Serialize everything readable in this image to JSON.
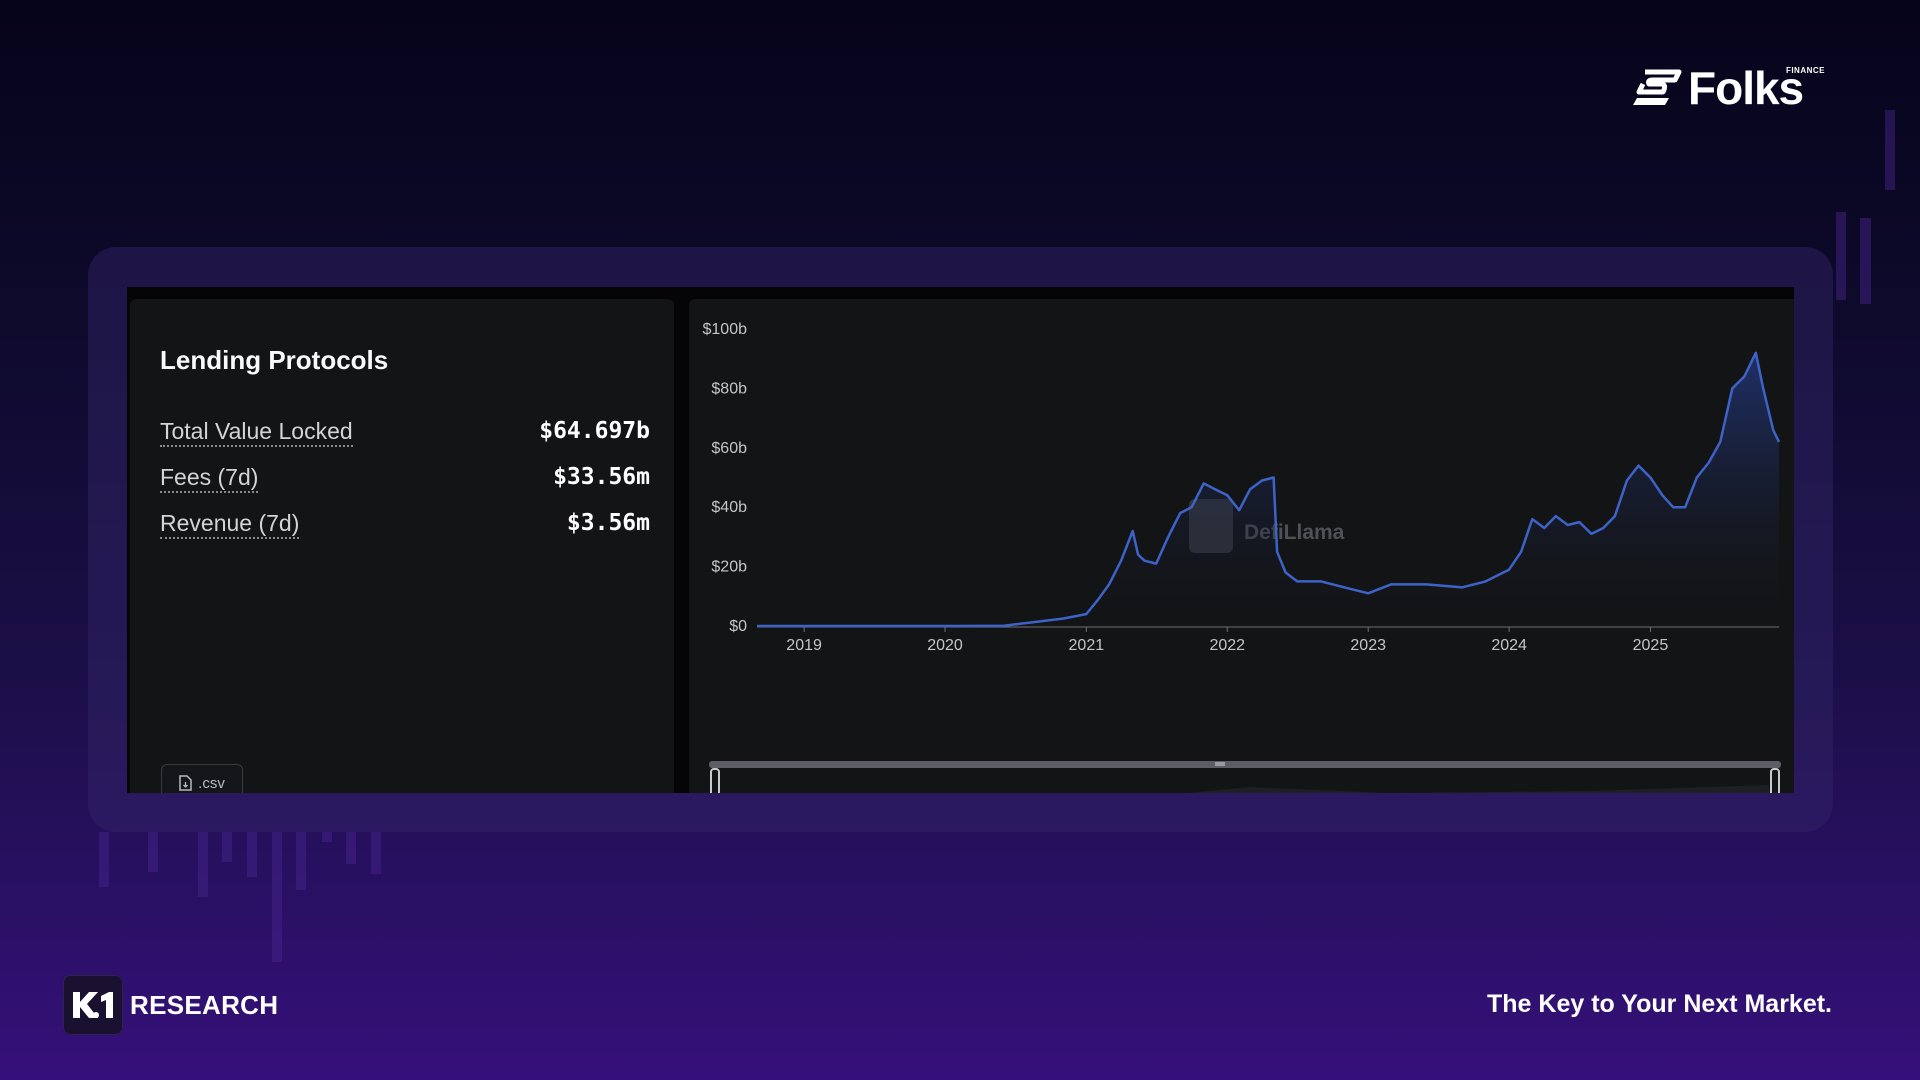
{
  "brand": {
    "logo_text": "Folks",
    "logo_sub": "FINANCE"
  },
  "panel": {
    "title": "Lending Protocols",
    "stats": [
      {
        "label": "Total Value Locked",
        "value": "$64.697b"
      },
      {
        "label": "Fees (7d)",
        "value": "$33.56m"
      },
      {
        "label": "Revenue (7d)",
        "value": "$3.56m"
      }
    ],
    "csv_label": ".csv"
  },
  "watermark": "DefiLlama",
  "footer": {
    "brand": "RESEARCH",
    "tagline": "The Key to Your Next Market."
  },
  "colors": {
    "line": "#3d63c9",
    "fill_top": "#233a85",
    "accent_purple": "#35107a"
  },
  "chart_data": {
    "type": "area",
    "title": "",
    "xlabel": "",
    "ylabel": "",
    "y_tick_labels": [
      "$0",
      "$20b",
      "$40b",
      "$60b",
      "$80b",
      "$100b"
    ],
    "y_ticks": [
      0,
      20,
      40,
      60,
      80,
      100
    ],
    "ylim": [
      0,
      100
    ],
    "x_tick_labels": [
      "2019",
      "2020",
      "2021",
      "2022",
      "2023",
      "2024",
      "2025"
    ],
    "xlim": [
      "2018-09-01",
      "2025-11-30"
    ],
    "grid": false,
    "series": [
      {
        "values": [
          [
            "2018-09-01",
            0
          ],
          [
            "2019-01-01",
            0
          ],
          [
            "2019-06-01",
            0
          ],
          [
            "2020-01-01",
            0
          ],
          [
            "2020-06-01",
            0.1
          ],
          [
            "2020-09-01",
            1.5
          ],
          [
            "2020-11-01",
            2.5
          ],
          [
            "2021-01-01",
            4
          ],
          [
            "2021-02-01",
            9
          ],
          [
            "2021-03-01",
            14
          ],
          [
            "2021-04-01",
            22
          ],
          [
            "2021-05-01",
            32
          ],
          [
            "2021-05-15",
            24
          ],
          [
            "2021-06-01",
            22
          ],
          [
            "2021-07-01",
            21
          ],
          [
            "2021-08-01",
            30
          ],
          [
            "2021-09-01",
            38
          ],
          [
            "2021-10-01",
            40
          ],
          [
            "2021-11-01",
            48
          ],
          [
            "2021-12-01",
            46
          ],
          [
            "2022-01-01",
            44
          ],
          [
            "2022-02-01",
            39
          ],
          [
            "2022-03-01",
            46
          ],
          [
            "2022-04-01",
            49
          ],
          [
            "2022-05-01",
            50
          ],
          [
            "2022-05-10",
            25
          ],
          [
            "2022-06-01",
            18
          ],
          [
            "2022-07-01",
            15
          ],
          [
            "2022-09-01",
            15
          ],
          [
            "2022-11-01",
            13
          ],
          [
            "2023-01-01",
            11
          ],
          [
            "2023-03-01",
            14
          ],
          [
            "2023-06-01",
            14
          ],
          [
            "2023-09-01",
            13
          ],
          [
            "2023-11-01",
            15
          ],
          [
            "2024-01-01",
            19
          ],
          [
            "2024-02-01",
            25
          ],
          [
            "2024-03-01",
            36
          ],
          [
            "2024-04-01",
            33
          ],
          [
            "2024-05-01",
            37
          ],
          [
            "2024-06-01",
            34
          ],
          [
            "2024-07-01",
            35
          ],
          [
            "2024-08-01",
            31
          ],
          [
            "2024-09-01",
            33
          ],
          [
            "2024-10-01",
            37
          ],
          [
            "2024-11-01",
            49
          ],
          [
            "2024-12-01",
            54
          ],
          [
            "2025-01-01",
            50
          ],
          [
            "2025-02-01",
            44
          ],
          [
            "2025-03-01",
            40
          ],
          [
            "2025-04-01",
            40
          ],
          [
            "2025-05-01",
            50
          ],
          [
            "2025-06-01",
            55
          ],
          [
            "2025-07-01",
            62
          ],
          [
            "2025-08-01",
            80
          ],
          [
            "2025-09-01",
            84
          ],
          [
            "2025-10-01",
            92
          ],
          [
            "2025-10-20",
            80
          ],
          [
            "2025-11-15",
            66
          ],
          [
            "2025-11-30",
            62
          ]
        ]
      }
    ]
  }
}
